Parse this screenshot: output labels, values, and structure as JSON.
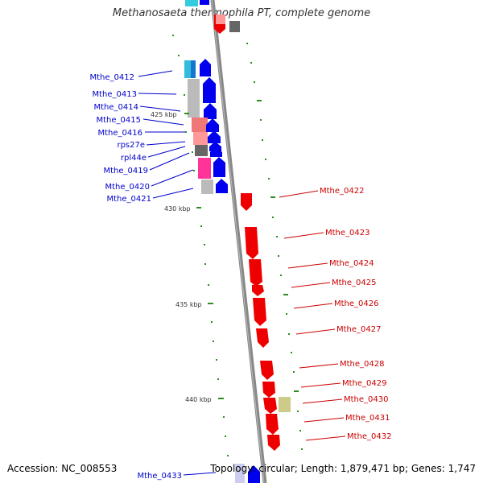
{
  "title": "Methanosaeta thermophila PT, complete genome",
  "accession": "Accession: NC_008553",
  "info": "Topology: circular; Length: 1,879,471 bp; Genes: 1,747",
  "colors": {
    "forward_label": "#0000cc",
    "reverse_label": "#cc0000",
    "forward_gene": "#0000ee",
    "reverse_gene": "#ee0000",
    "backbone": "#888888",
    "tick": "#2e8b20"
  },
  "kbp_ticks": [
    "425 kbp",
    "430 kbp",
    "435 kbp",
    "440 kbp"
  ],
  "forward_labels": [
    "Mthe_0412",
    "Mthe_0413",
    "Mthe_0414",
    "Mthe_0415",
    "Mthe_0416",
    "rps27e",
    "rpl44e",
    "Mthe_0419",
    "Mthe_0420",
    "Mthe_0421",
    "Mthe_0433"
  ],
  "reverse_labels": [
    "Mthe_0422",
    "Mthe_0423",
    "Mthe_0424",
    "Mthe_0425",
    "Mthe_0426",
    "Mthe_0427",
    "Mthe_0428",
    "Mthe_0429",
    "Mthe_0430",
    "Mthe_0431",
    "Mthe_0432"
  ]
}
